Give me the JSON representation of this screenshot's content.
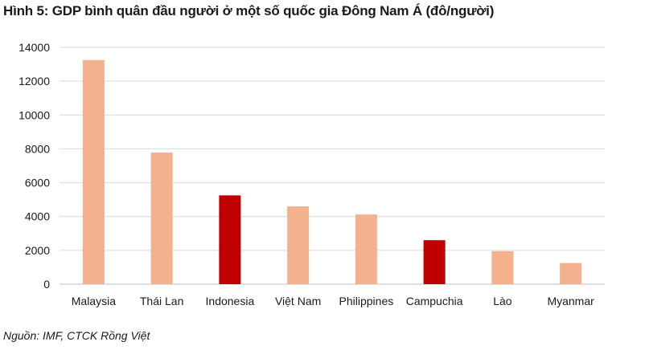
{
  "title": "Hình 5: GDP bình quân đầu người ở một số quốc gia Đông Nam Á (đô/người)",
  "source": "Nguồn: IMF, CTCK Rồng Việt",
  "colors": {
    "light": "#f4b18d",
    "highlight": "#c00000",
    "grid": "#d9d9d9"
  },
  "chart_data": {
    "type": "bar",
    "title": "Hình 5: GDP bình quân đầu người ở một số quốc gia Đông Nam Á (đô/người)",
    "xlabel": "",
    "ylabel": "",
    "ylim": [
      0,
      14000
    ],
    "yticks": [
      0,
      2000,
      4000,
      6000,
      8000,
      10000,
      12000,
      14000
    ],
    "grid": true,
    "categories": [
      "Malaysia",
      "Thái Lan",
      "Indonesia",
      "Việt Nam",
      "Philippines",
      "Campuchia",
      "Lào",
      "Myanmar"
    ],
    "values": [
      13250,
      7780,
      5250,
      4600,
      4120,
      2600,
      1950,
      1250
    ],
    "highlighted": [
      "Indonesia",
      "Campuchia"
    ]
  }
}
